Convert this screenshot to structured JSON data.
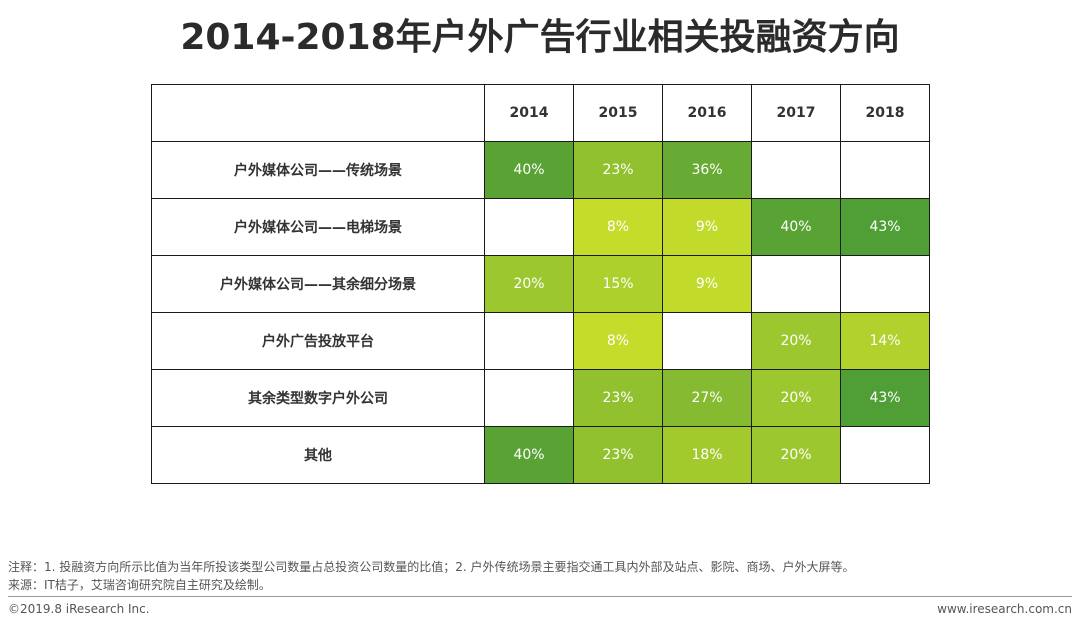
{
  "title": "2014-2018年户外广告行业相关投融资方向",
  "chart_data": {
    "type": "heatmap",
    "title": "2014-2018年户外广告行业相关投融资方向",
    "columns": [
      "2014",
      "2015",
      "2016",
      "2017",
      "2018"
    ],
    "rows": [
      {
        "label": "户外媒体公司——传统场景",
        "values": [
          "40%",
          "23%",
          "36%",
          "",
          ""
        ]
      },
      {
        "label": "户外媒体公司——电梯场景",
        "values": [
          "",
          "8%",
          "9%",
          "40%",
          "43%"
        ]
      },
      {
        "label": "户外媒体公司——其余细分场景",
        "values": [
          "20%",
          "15%",
          "9%",
          "",
          ""
        ]
      },
      {
        "label": "户外广告投放平台",
        "values": [
          "",
          "8%",
          "",
          "20%",
          "14%"
        ]
      },
      {
        "label": "其余类型数字户外公司",
        "values": [
          "",
          "23%",
          "27%",
          "20%",
          "43%"
        ]
      },
      {
        "label": "其他",
        "values": [
          "40%",
          "23%",
          "18%",
          "20%",
          ""
        ]
      }
    ],
    "color_scale": {
      "low": "#c5dc2a",
      "high": "#4f9e36"
    }
  },
  "notes": {
    "note": "注释：1. 投融资方向所示比值为当年所投该类型公司数量占总投资公司数量的比值；2. 户外传统场景主要指交通工具内外部及站点、影院、商场、户外大屏等。",
    "source": "来源：IT桔子，艾瑞咨询研究院自主研究及绘制。"
  },
  "footer": {
    "copyright": "©2019.8 iResearch Inc.",
    "website": "www.iresearch.com.cn"
  }
}
